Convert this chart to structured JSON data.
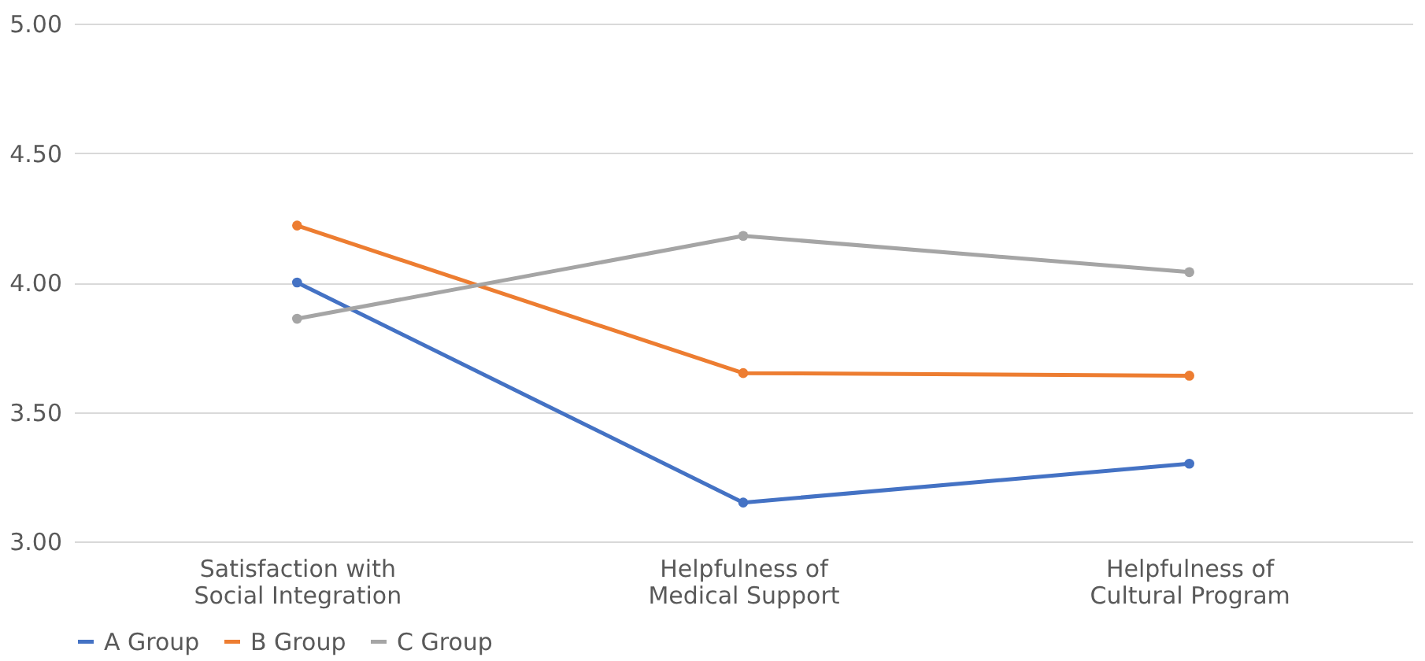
{
  "chart_data": {
    "type": "line",
    "categories": [
      "Satisfaction with Social Integration",
      "Helpfulness of Medical Support",
      "Helpfulness of Cultural Program"
    ],
    "series": [
      {
        "name": "A Group",
        "color": "#4472c4",
        "values": [
          4.0,
          3.15,
          3.3
        ]
      },
      {
        "name": "B Group",
        "color": "#ed7d31",
        "values": [
          4.22,
          3.65,
          3.64
        ]
      },
      {
        "name": "C Group",
        "color": "#a5a5a5",
        "values": [
          3.86,
          4.18,
          4.04
        ]
      }
    ],
    "ylim": [
      3,
      5
    ],
    "yticks": [
      {
        "value": 3,
        "label": "3.00"
      },
      {
        "value": 3.5,
        "label": "3.50"
      },
      {
        "value": 4,
        "label": "4.00"
      },
      {
        "value": 4.5,
        "label": "4.50"
      },
      {
        "value": 5,
        "label": "5.00"
      }
    ],
    "grid": "y",
    "legend": "bottom",
    "marker": "circle",
    "line_style": "solid"
  }
}
